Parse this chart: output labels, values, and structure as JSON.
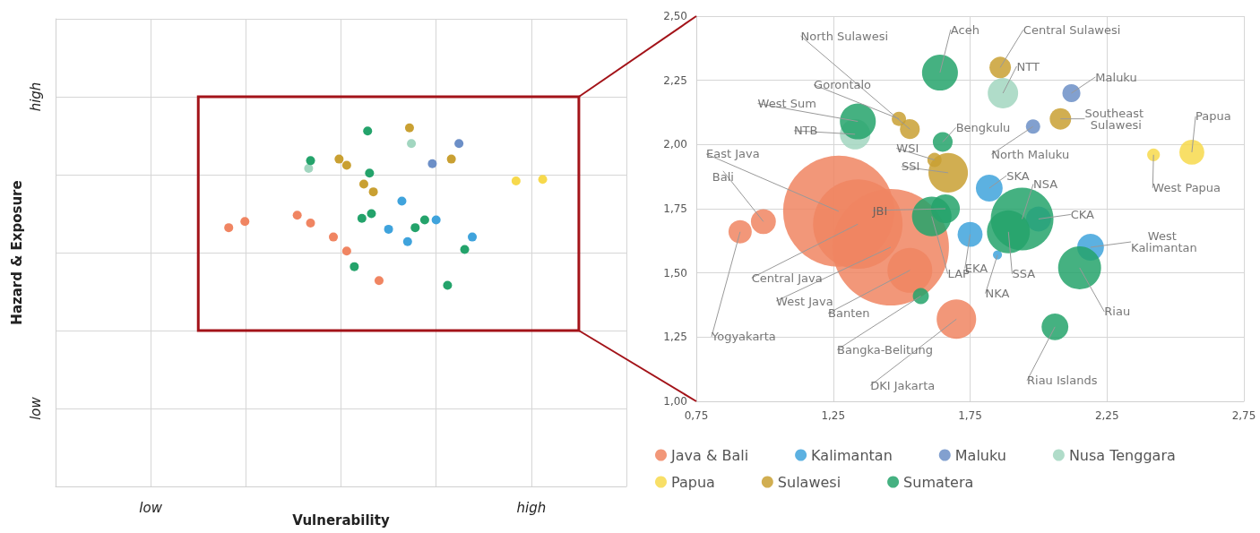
{
  "chart_data": [
    {
      "type": "other",
      "xlabel": "Vulnerability",
      "ylabel": "Hazard & Exposure",
      "annotations": [
        "low",
        "high",
        "low",
        "high"
      ]
    },
    {
      "type": "bubble",
      "xlim": [
        0.75,
        2.75
      ],
      "ylim": [
        1,
        2.5
      ],
      "xticks": [
        {
          "value": 0.75,
          "label": "0,75"
        },
        {
          "value": 1.25,
          "label": "1,25"
        },
        {
          "value": 1.75,
          "label": "1,75"
        },
        {
          "value": 2.25,
          "label": "2,25"
        },
        {
          "value": 2.75,
          "label": "2,75"
        }
      ],
      "yticks": [
        {
          "value": 1,
          "label": "1,00"
        },
        {
          "value": 1.25,
          "label": "1,25"
        },
        {
          "value": 1.5,
          "label": "1,50"
        },
        {
          "value": 1.75,
          "label": "1,75"
        },
        {
          "value": 2,
          "label": "2,00"
        },
        {
          "value": 2.25,
          "label": "2,25"
        },
        {
          "value": 2.5,
          "label": "2,50"
        }
      ],
      "grid": true,
      "legend": "bottom",
      "marker": "circle",
      "series": [
        {
          "name": "Java & Bali",
          "color": "#f08562",
          "x": [
            0.91,
            0.995,
            1.27,
            1.34,
            1.46,
            1.53,
            1.7
          ],
          "values": [
            1.66,
            1.7,
            1.74,
            1.69,
            1.6,
            1.51,
            1.32
          ],
          "sizes": [
            0.04,
            0.046,
            0.91,
            0.59,
            1,
            0.148,
            0.115
          ]
        },
        {
          "name": "Kalimantan",
          "color": "#3fa3dc",
          "x": [
            1.82,
            1.75,
            1.85,
            2.0,
            2.19
          ],
          "values": [
            1.83,
            1.65,
            1.57,
            1.71,
            1.6
          ],
          "sizes": [
            0.053,
            0.046,
            0.006,
            0.046,
            0.053
          ]
        },
        {
          "name": "Maluku",
          "color": "#6c8fc7",
          "x": [
            1.98,
            2.12
          ],
          "values": [
            2.07,
            2.2
          ],
          "sizes": [
            0.015,
            0.024
          ]
        },
        {
          "name": "Nusa Tenggara",
          "color": "#a2d6c0",
          "x": [
            1.33,
            1.87
          ],
          "values": [
            2.04,
            2.2
          ],
          "sizes": [
            0.068,
            0.068
          ]
        },
        {
          "name": "Papua",
          "color": "#f7d94c",
          "x": [
            2.42,
            2.56
          ],
          "values": [
            1.96,
            1.97
          ],
          "sizes": [
            0.012,
            0.046
          ]
        },
        {
          "name": "Sulawesi",
          "color": "#c9a032",
          "x": [
            1.49,
            1.53,
            1.62,
            1.67,
            1.86,
            2.08
          ],
          "values": [
            2.1,
            2.06,
            1.94,
            1.89,
            2.3,
            2.1
          ],
          "sizes": [
            0.015,
            0.029,
            0.015,
            0.115,
            0.034,
            0.034
          ]
        },
        {
          "name": "Sumatera",
          "color": "#24a36b",
          "x": [
            1.34,
            1.64,
            1.65,
            1.66,
            1.61,
            1.57,
            1.89,
            1.94,
            2.15,
            2.06
          ],
          "values": [
            2.09,
            2.28,
            2.01,
            1.75,
            1.72,
            1.41,
            1.66,
            1.71,
            1.52,
            1.29
          ],
          "sizes": [
            0.095,
            0.095,
            0.029,
            0.061,
            0.115,
            0.019,
            0.136,
            0.29,
            0.136,
            0.053
          ]
        }
      ],
      "annotations": [
        {
          "text": "Yogyakarta",
          "x": 0.91,
          "y": 1.66
        },
        {
          "text": "Bali",
          "x": 0.995,
          "y": 1.7
        },
        {
          "text": "East Java",
          "x": 1.27,
          "y": 1.74
        },
        {
          "text": "Central Java",
          "x": 1.34,
          "y": 1.69
        },
        {
          "text": "West Java",
          "x": 1.46,
          "y": 1.6
        },
        {
          "text": "Banten",
          "x": 1.53,
          "y": 1.51
        },
        {
          "text": "DKI Jakarta",
          "x": 1.7,
          "y": 1.32
        },
        {
          "text": "SKA",
          "x": 1.82,
          "y": 1.83
        },
        {
          "text": "EKA",
          "x": 1.75,
          "y": 1.65
        },
        {
          "text": "NKA",
          "x": 1.85,
          "y": 1.57
        },
        {
          "text": "CKA",
          "x": 2.0,
          "y": 1.71
        },
        {
          "text": "West Kalimantan",
          "x": 2.19,
          "y": 1.6
        },
        {
          "text": "North Maluku",
          "x": 1.98,
          "y": 2.07
        },
        {
          "text": "Maluku",
          "x": 2.12,
          "y": 2.2
        },
        {
          "text": "NTB",
          "x": 1.33,
          "y": 2.04
        },
        {
          "text": "NTT",
          "x": 1.87,
          "y": 2.2
        },
        {
          "text": "West Papua",
          "x": 2.42,
          "y": 1.96
        },
        {
          "text": "Papua",
          "x": 2.56,
          "y": 1.97
        },
        {
          "text": "Gorontalo",
          "x": 1.49,
          "y": 2.1
        },
        {
          "text": "North Sulawesi",
          "x": 1.53,
          "y": 2.06
        },
        {
          "text": "WSI",
          "x": 1.62,
          "y": 1.94
        },
        {
          "text": "SSI",
          "x": 1.67,
          "y": 1.89
        },
        {
          "text": "Central Sulawesi",
          "x": 1.86,
          "y": 2.3
        },
        {
          "text": "Southeast Sulawesi",
          "x": 2.08,
          "y": 2.1
        },
        {
          "text": "West Sum",
          "x": 1.34,
          "y": 2.09
        },
        {
          "text": "Aceh",
          "x": 1.64,
          "y": 2.28
        },
        {
          "text": "Bengkulu",
          "x": 1.65,
          "y": 2.01
        },
        {
          "text": "JBI",
          "x": 1.66,
          "y": 1.75
        },
        {
          "text": "LAP",
          "x": 1.61,
          "y": 1.72
        },
        {
          "text": "Bangka-Belitung",
          "x": 1.57,
          "y": 1.41
        },
        {
          "text": "SSA",
          "x": 1.89,
          "y": 1.66
        },
        {
          "text": "NSA",
          "x": 1.94,
          "y": 1.71
        },
        {
          "text": "Riau",
          "x": 2.15,
          "y": 1.52
        },
        {
          "text": "Riau Islands",
          "x": 2.06,
          "y": 1.29
        }
      ]
    }
  ]
}
